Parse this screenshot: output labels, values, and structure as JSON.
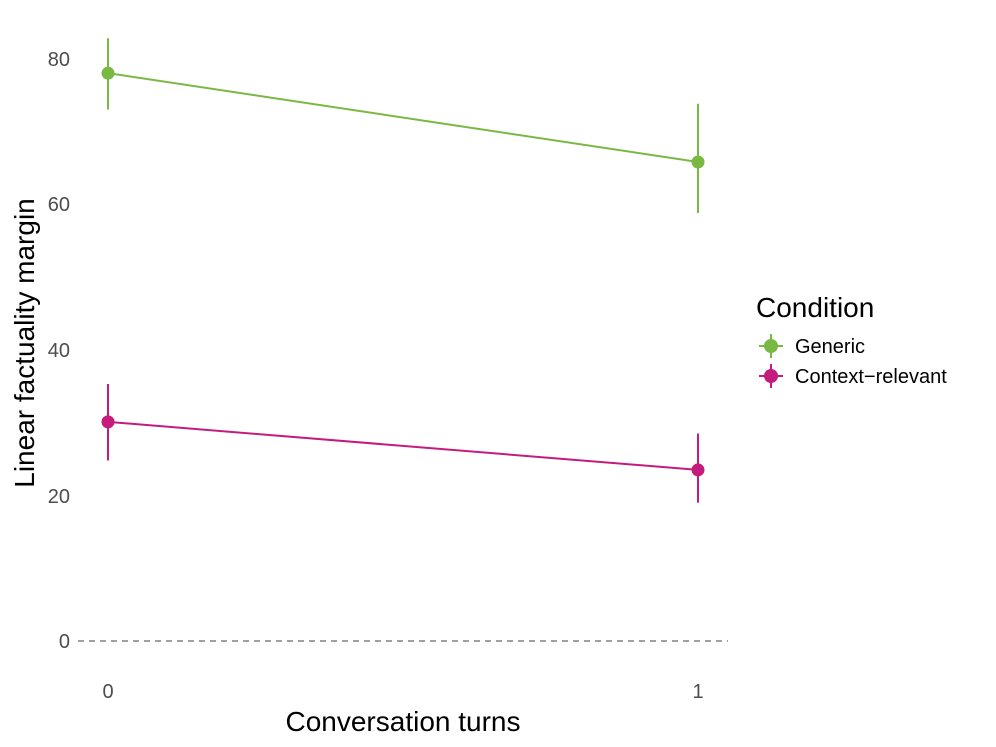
{
  "chart_data": {
    "type": "line",
    "xlabel": "Conversation turns",
    "ylabel": "Linear factuality margin",
    "x": [
      0,
      1
    ],
    "x_ticks": [
      "0",
      "1"
    ],
    "y_ticks": [
      "0",
      "20",
      "40",
      "60",
      "80"
    ],
    "ylim": [
      -5,
      85
    ],
    "xlim": [
      -0.05,
      1.05
    ],
    "grid": false,
    "reference_line": {
      "y": 0,
      "style": "dashed",
      "color": "#808080"
    },
    "legend": {
      "title": "Condition",
      "placement": "right"
    },
    "series": [
      {
        "name": "Generic",
        "color": "#7ab844",
        "values": [
          78,
          65.8
        ],
        "error_low": [
          73,
          58.8
        ],
        "error_high": [
          82.8,
          73.8
        ]
      },
      {
        "name": "Context−relevant",
        "color": "#c51b7d",
        "values": [
          30.1,
          23.5
        ],
        "error_low": [
          24.8,
          19
        ],
        "error_high": [
          35.3,
          28.5
        ]
      }
    ]
  }
}
